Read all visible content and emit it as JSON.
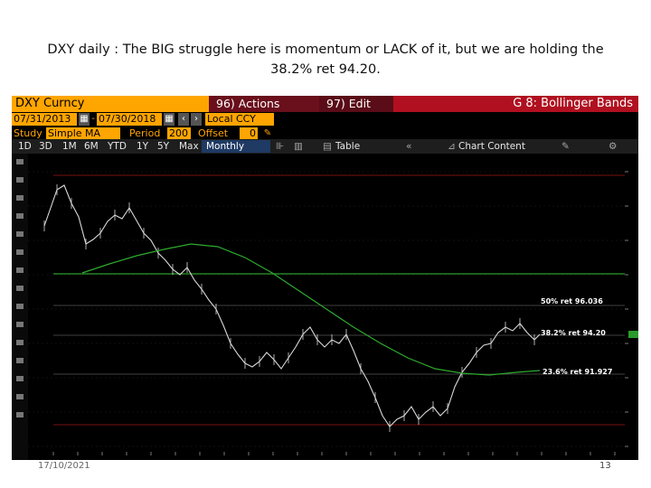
{
  "slide": {
    "title": "DXY daily : The BIG struggle here is momentum or LACK of it, but we are holding the 38.2% ret 94.20.",
    "footer_date": "17/10/2021",
    "page_number": "13"
  },
  "terminal": {
    "ticker": "DXY Curncy",
    "actions_menu": "96) Actions",
    "edit_menu": "97) Edit",
    "function_title": "G 8: Bollinger Bands",
    "start_date": "07/31/2013",
    "end_date": "07/30/2018",
    "currency": "Local CCY",
    "study_label": "Study",
    "study_value": "Simple MA",
    "period_label": "Period",
    "period_value": "200",
    "offset_label": "Offset",
    "offset_value": "0",
    "timeframes": [
      "1D",
      "3D",
      "1M",
      "6M",
      "YTD",
      "1Y",
      "5Y",
      "Max"
    ],
    "frequency": "Monthly",
    "table_label": "Table",
    "chart_content_label": "Chart Content",
    "colors": {
      "amber": "#ffa500",
      "price": "#d8d8d8",
      "ma": "#2eaa2e",
      "bg": "#000000"
    }
  },
  "chart_data": {
    "type": "line",
    "series": [],
    "retracement_labels": [
      "50% ret 96.036",
      "38.2% ret 94.20",
      "23.6% ret 91.927"
    ]
  }
}
